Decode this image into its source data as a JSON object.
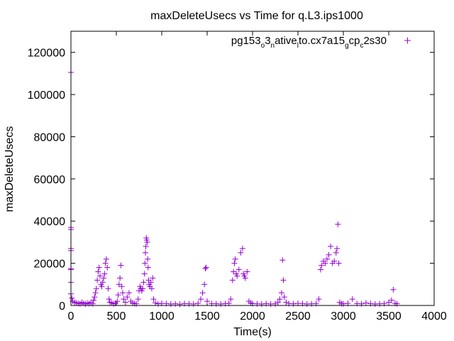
{
  "chart_data": {
    "type": "scatter",
    "title": "maxDeleteUsecs vs Time for q.L3.ips1000",
    "xlabel": "Time(s)",
    "ylabel": "maxDeleteUsecs",
    "xlim": [
      0,
      4000
    ],
    "ylim": [
      0,
      130000
    ],
    "xticks": [
      0,
      500,
      1000,
      1500,
      2000,
      2500,
      3000,
      3500,
      4000
    ],
    "yticks": [
      0,
      20000,
      40000,
      60000,
      80000,
      100000,
      120000
    ],
    "grid": false,
    "legend_position": "top-right",
    "series": [
      {
        "name": "pg153_o3_native_lto.cx7a15_gcp_c2s30",
        "color": "#9400d3",
        "marker": "+",
        "points": [
          [
            0,
            110500
          ],
          [
            0,
            37000
          ],
          [
            0,
            36000
          ],
          [
            0,
            27000
          ],
          [
            0,
            26000
          ],
          [
            0,
            17500
          ],
          [
            0,
            17000
          ],
          [
            0,
            11000
          ],
          [
            0,
            5500
          ],
          [
            10,
            3500
          ],
          [
            20,
            2000
          ],
          [
            40,
            1500
          ],
          [
            60,
            1200
          ],
          [
            80,
            1000
          ],
          [
            100,
            800
          ],
          [
            120,
            1500
          ],
          [
            140,
            1100
          ],
          [
            160,
            700
          ],
          [
            180,
            1200
          ],
          [
            200,
            900
          ],
          [
            220,
            1500
          ],
          [
            240,
            800
          ],
          [
            250,
            2500
          ],
          [
            260,
            4000
          ],
          [
            270,
            6000
          ],
          [
            280,
            8000
          ],
          [
            290,
            12000
          ],
          [
            300,
            16000
          ],
          [
            310,
            18000
          ],
          [
            320,
            14000
          ],
          [
            330,
            10000
          ],
          [
            340,
            9000
          ],
          [
            350,
            11000
          ],
          [
            360,
            13000
          ],
          [
            370,
            15000
          ],
          [
            380,
            20000
          ],
          [
            390,
            22000
          ],
          [
            400,
            18000
          ],
          [
            410,
            8000
          ],
          [
            420,
            3000
          ],
          [
            430,
            1500
          ],
          [
            450,
            1200
          ],
          [
            470,
            800
          ],
          [
            490,
            1000
          ],
          [
            510,
            2000
          ],
          [
            520,
            5000
          ],
          [
            530,
            10000
          ],
          [
            540,
            13000
          ],
          [
            550,
            19000
          ],
          [
            560,
            9000
          ],
          [
            570,
            6000
          ],
          [
            580,
            3000
          ],
          [
            600,
            1500
          ],
          [
            620,
            4000
          ],
          [
            640,
            6000
          ],
          [
            660,
            2000
          ],
          [
            680,
            1200
          ],
          [
            700,
            900
          ],
          [
            720,
            800
          ],
          [
            740,
            3000
          ],
          [
            750,
            7000
          ],
          [
            760,
            9000
          ],
          [
            770,
            8000
          ],
          [
            780,
            7000
          ],
          [
            790,
            8000
          ],
          [
            800,
            11000
          ],
          [
            810,
            15000
          ],
          [
            815,
            20000
          ],
          [
            820,
            25000
          ],
          [
            825,
            28000
          ],
          [
            830,
            32000
          ],
          [
            835,
            31000
          ],
          [
            840,
            30000
          ],
          [
            845,
            22000
          ],
          [
            850,
            18000
          ],
          [
            855,
            12000
          ],
          [
            860,
            10000
          ],
          [
            870,
            9000
          ],
          [
            880,
            11000
          ],
          [
            890,
            8000
          ],
          [
            900,
            13000
          ],
          [
            910,
            3000
          ],
          [
            930,
            1200
          ],
          [
            960,
            800
          ],
          [
            1000,
            1000
          ],
          [
            1050,
            900
          ],
          [
            1100,
            700
          ],
          [
            1150,
            800
          ],
          [
            1200,
            600
          ],
          [
            1250,
            900
          ],
          [
            1300,
            800
          ],
          [
            1350,
            700
          ],
          [
            1400,
            1000
          ],
          [
            1430,
            3000
          ],
          [
            1450,
            6000
          ],
          [
            1470,
            10000
          ],
          [
            1480,
            17500
          ],
          [
            1490,
            18000
          ],
          [
            1500,
            2000
          ],
          [
            1550,
            900
          ],
          [
            1600,
            800
          ],
          [
            1650,
            700
          ],
          [
            1700,
            900
          ],
          [
            1740,
            1000
          ],
          [
            1760,
            3000
          ],
          [
            1780,
            12000
          ],
          [
            1790,
            16000
          ],
          [
            1800,
            20000
          ],
          [
            1810,
            22000
          ],
          [
            1820,
            15000
          ],
          [
            1830,
            14000
          ],
          [
            1850,
            17000
          ],
          [
            1870,
            25000
          ],
          [
            1890,
            27000
          ],
          [
            1900,
            15000
          ],
          [
            1910,
            14000
          ],
          [
            1920,
            13000
          ],
          [
            1940,
            16000
          ],
          [
            1960,
            2000
          ],
          [
            1980,
            1200
          ],
          [
            2000,
            900
          ],
          [
            2050,
            800
          ],
          [
            2100,
            700
          ],
          [
            2150,
            900
          ],
          [
            2200,
            700
          ],
          [
            2250,
            800
          ],
          [
            2280,
            1500
          ],
          [
            2300,
            3000
          ],
          [
            2320,
            6000
          ],
          [
            2330,
            21500
          ],
          [
            2340,
            12000
          ],
          [
            2350,
            4000
          ],
          [
            2370,
            1500
          ],
          [
            2400,
            900
          ],
          [
            2450,
            800
          ],
          [
            2500,
            1000
          ],
          [
            2550,
            900
          ],
          [
            2600,
            700
          ],
          [
            2650,
            800
          ],
          [
            2700,
            900
          ],
          [
            2730,
            3000
          ],
          [
            2750,
            17000
          ],
          [
            2760,
            19000
          ],
          [
            2780,
            21000
          ],
          [
            2800,
            20000
          ],
          [
            2820,
            22000
          ],
          [
            2840,
            24000
          ],
          [
            2860,
            28000
          ],
          [
            2880,
            20000
          ],
          [
            2900,
            21000
          ],
          [
            2920,
            25000
          ],
          [
            2930,
            27000
          ],
          [
            2940,
            38500
          ],
          [
            2950,
            20000
          ],
          [
            2960,
            1500
          ],
          [
            2980,
            900
          ],
          [
            3000,
            800
          ],
          [
            3050,
            1000
          ],
          [
            3100,
            3000
          ],
          [
            3150,
            900
          ],
          [
            3200,
            800
          ],
          [
            3250,
            1200
          ],
          [
            3300,
            900
          ],
          [
            3350,
            700
          ],
          [
            3400,
            800
          ],
          [
            3450,
            900
          ],
          [
            3500,
            1500
          ],
          [
            3530,
            2500
          ],
          [
            3550,
            7500
          ],
          [
            3570,
            1000
          ],
          [
            3590,
            800
          ]
        ]
      }
    ]
  },
  "legend": {
    "base": "pg153",
    "sub1": "o",
    "mid1": "3",
    "sub2": "n",
    "mid2": "ative",
    "sub3": "l",
    "mid3": "to.cx7a15",
    "sub4": "g",
    "mid4": "cp",
    "sub5": "c",
    "mid5": "2s30"
  }
}
